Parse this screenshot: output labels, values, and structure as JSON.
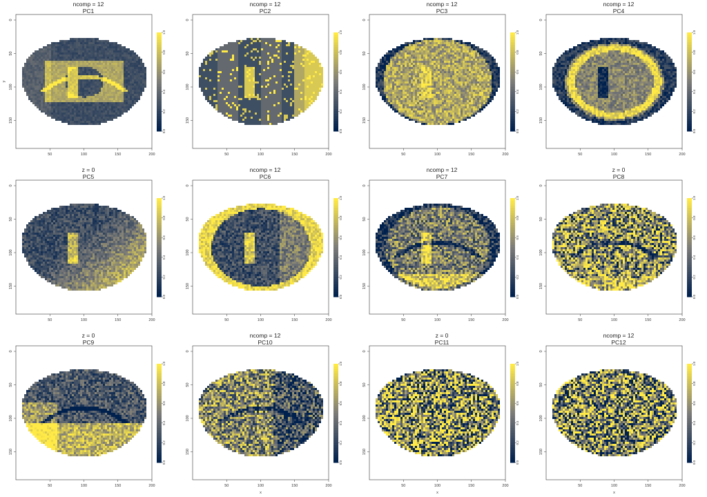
{
  "figure": {
    "chart_data": [
      {
        "type": "heatmap",
        "title": "ncomp = 12",
        "subtitle": "PC1",
        "xlabel": "",
        "ylabel": "y",
        "xlim": [
          0,
          200
        ],
        "ylim": [
          0,
          200
        ],
        "xticks": [
          50,
          100,
          150,
          200
        ],
        "yticks": [
          0,
          50,
          100,
          150
        ],
        "colorbar": {
          "range": [
            0,
            1
          ],
          "ticks": [
            "0.0",
            "0.2",
            "0.4",
            "0.6",
            "0.8",
            "1.0"
          ]
        },
        "colors": {
          "low": "#00204d",
          "mid": "#7c7b78",
          "high": "#ffea46"
        },
        "pattern": "smooth"
      },
      {
        "type": "heatmap",
        "title": "ncomp = 12",
        "subtitle": "PC2",
        "xlabel": "",
        "ylabel": "",
        "xlim": [
          0,
          200
        ],
        "ylim": [
          0,
          200
        ],
        "xticks": [
          50,
          100,
          150,
          200
        ],
        "yticks": [
          0,
          50,
          100,
          150
        ],
        "colorbar": {
          "range": [
            0,
            1
          ],
          "ticks": [
            "0.0",
            "0.2",
            "0.4",
            "0.6",
            "0.8",
            "1.0"
          ]
        },
        "colors": {
          "low": "#00204d",
          "mid": "#7c7b78",
          "high": "#ffea46"
        },
        "pattern": "blocky"
      },
      {
        "type": "heatmap",
        "title": "ncomp = 12",
        "subtitle": "PC3",
        "xlabel": "",
        "ylabel": "",
        "xlim": [
          0,
          200
        ],
        "ylim": [
          0,
          200
        ],
        "xticks": [
          50,
          100,
          150,
          200
        ],
        "yticks": [
          0,
          50,
          100,
          150
        ],
        "colorbar": {
          "range": [
            0,
            1
          ],
          "ticks": [
            "0.0",
            "0.2",
            "0.4",
            "0.6",
            "0.8",
            "1.0"
          ]
        },
        "colors": {
          "low": "#00204d",
          "mid": "#7c7b78",
          "high": "#ffea46"
        },
        "pattern": "light"
      },
      {
        "type": "heatmap",
        "title": "ncomp = 12",
        "subtitle": "PC4",
        "xlabel": "",
        "ylabel": "",
        "xlim": [
          0,
          200
        ],
        "ylim": [
          0,
          200
        ],
        "xticks": [
          50,
          100,
          150,
          200
        ],
        "yticks": [
          0,
          50,
          100,
          150
        ],
        "colorbar": {
          "range": [
            0,
            1
          ],
          "ticks": [
            "0.0",
            "0.2",
            "0.4",
            "0.6",
            "0.8",
            "1.0"
          ]
        },
        "colors": {
          "low": "#00204d",
          "mid": "#7c7b78",
          "high": "#ffea46"
        },
        "pattern": "ring"
      },
      {
        "type": "heatmap",
        "title": "z = 0",
        "subtitle": "PC5",
        "xlabel": "",
        "ylabel": "",
        "xlim": [
          0,
          200
        ],
        "ylim": [
          0,
          200
        ],
        "xticks": [
          50,
          100,
          150,
          200
        ],
        "yticks": [
          0,
          50,
          100,
          150
        ],
        "colorbar": {
          "range": [
            0,
            1
          ],
          "ticks": [
            "0.0",
            "0.2",
            "0.4",
            "0.6",
            "0.8",
            "1.0"
          ]
        },
        "colors": {
          "low": "#00204d",
          "mid": "#7c7b78",
          "high": "#ffea46"
        },
        "pattern": "diag"
      },
      {
        "type": "heatmap",
        "title": "ncomp = 12",
        "subtitle": "PC6",
        "xlabel": "",
        "ylabel": "",
        "xlim": [
          0,
          200
        ],
        "ylim": [
          0,
          200
        ],
        "xticks": [
          50,
          100,
          150,
          200
        ],
        "yticks": [
          0,
          50,
          100,
          150
        ],
        "colorbar": {
          "range": [
            0,
            1
          ],
          "ticks": [
            "0.0",
            "0.2",
            "0.4",
            "0.6",
            "0.8",
            "1.0"
          ]
        },
        "colors": {
          "low": "#00204d",
          "mid": "#7c7b78",
          "high": "#ffea46"
        },
        "pattern": "edge"
      },
      {
        "type": "heatmap",
        "title": "ncomp = 12",
        "subtitle": "PC7",
        "xlabel": "",
        "ylabel": "",
        "xlim": [
          0,
          200
        ],
        "ylim": [
          0,
          200
        ],
        "xticks": [
          50,
          100,
          150,
          200
        ],
        "yticks": [
          0,
          50,
          100,
          150
        ],
        "colorbar": {
          "range": [
            0,
            1
          ],
          "ticks": [
            "0.0",
            "0.2",
            "0.4",
            "0.6",
            "0.8",
            "1.0"
          ]
        },
        "colors": {
          "low": "#00204d",
          "mid": "#7c7b78",
          "high": "#ffea46"
        },
        "pattern": "cortex"
      },
      {
        "type": "heatmap",
        "title": "z = 0",
        "subtitle": "PC8",
        "xlabel": "",
        "ylabel": "",
        "xlim": [
          0,
          200
        ],
        "ylim": [
          0,
          200
        ],
        "xticks": [
          50,
          100,
          150,
          200
        ],
        "yticks": [
          0,
          50,
          100,
          150
        ],
        "colorbar": {
          "range": [
            0,
            1
          ],
          "ticks": [
            "0.0",
            "0.2",
            "0.4",
            "0.6",
            "0.8",
            "1.0"
          ]
        },
        "colors": {
          "low": "#00204d",
          "mid": "#7c7b78",
          "high": "#ffea46"
        },
        "pattern": "noisy"
      },
      {
        "type": "heatmap",
        "title": "z = 0",
        "subtitle": "PC9",
        "xlabel": "",
        "ylabel": "",
        "xlim": [
          0,
          200
        ],
        "ylim": [
          0,
          200
        ],
        "xticks": [
          50,
          100,
          150,
          200
        ],
        "yticks": [
          0,
          50,
          100,
          150
        ],
        "colorbar": {
          "range": [
            0,
            1
          ],
          "ticks": [
            "0.0",
            "0.2",
            "0.4",
            "0.6",
            "0.8",
            "1.0"
          ]
        },
        "colors": {
          "low": "#00204d",
          "mid": "#7c7b78",
          "high": "#ffea46"
        },
        "pattern": "bottom"
      },
      {
        "type": "heatmap",
        "title": "ncomp = 12",
        "subtitle": "PC10",
        "xlabel": "x",
        "ylabel": "",
        "xlim": [
          0,
          200
        ],
        "ylim": [
          0,
          200
        ],
        "xticks": [
          50,
          100,
          150,
          200
        ],
        "yticks": [
          0,
          50,
          100,
          150
        ],
        "colorbar": {
          "range": [
            0,
            1
          ],
          "ticks": [
            "0.0",
            "0.2",
            "0.4",
            "0.6",
            "0.8",
            "1.0"
          ]
        },
        "colors": {
          "low": "#00204d",
          "mid": "#7c7b78",
          "high": "#ffea46"
        },
        "pattern": "mixed"
      },
      {
        "type": "heatmap",
        "title": "z = 0",
        "subtitle": "PC11",
        "xlabel": "x",
        "ylabel": "",
        "xlim": [
          0,
          200
        ],
        "ylim": [
          0,
          200
        ],
        "xticks": [
          50,
          100,
          150,
          200
        ],
        "yticks": [
          0,
          50,
          100,
          150
        ],
        "colorbar": {
          "range": [
            0,
            1
          ],
          "ticks": [
            "0.0",
            "0.2",
            "0.4",
            "0.6",
            "0.8",
            "1.0"
          ]
        },
        "colors": {
          "low": "#00204d",
          "mid": "#7c7b78",
          "high": "#ffea46"
        },
        "pattern": "speckle"
      },
      {
        "type": "heatmap",
        "title": "ncomp = 12",
        "subtitle": "PC12",
        "xlabel": "x",
        "ylabel": "",
        "xlim": [
          0,
          200
        ],
        "ylim": [
          0,
          200
        ],
        "xticks": [
          50,
          100,
          150,
          200
        ],
        "yticks": [
          0,
          50,
          100,
          150
        ],
        "colorbar": {
          "range": [
            0,
            1
          ],
          "ticks": [
            "0.0",
            "0.2",
            "0.4",
            "0.6",
            "0.8",
            "1.0"
          ]
        },
        "colors": {
          "low": "#00204d",
          "mid": "#7c7b78",
          "high": "#ffea46"
        },
        "pattern": "speckle2"
      }
    ]
  }
}
